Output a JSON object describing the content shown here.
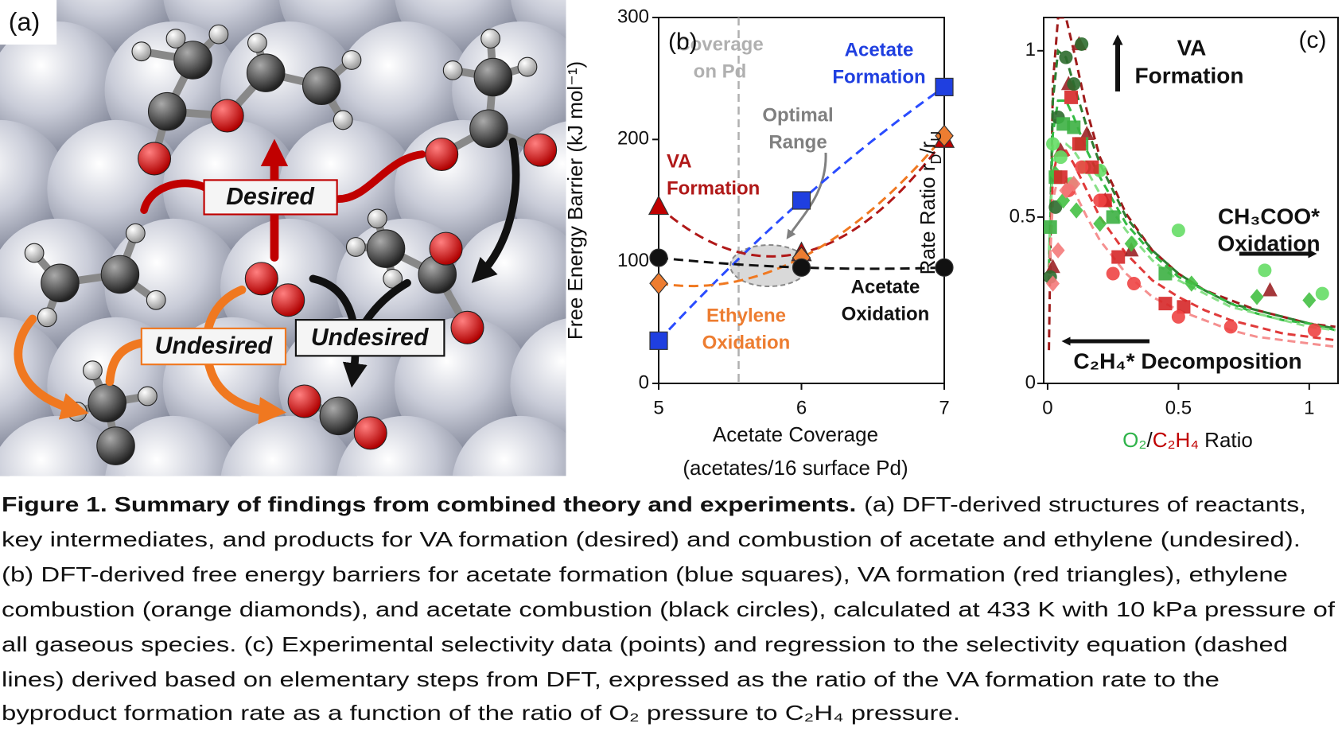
{
  "panel_a": {
    "label": "(a)",
    "labels": [
      "Desired",
      "Undesired",
      "Undesired"
    ]
  },
  "chart_data": [
    {
      "type": "scatter",
      "label": "(b)",
      "ylabel": "Free Energy Barrier (kJ mol⁻¹)",
      "xlabel": [
        "Acetate Coverage",
        "(acetates/16 surface Pd)"
      ],
      "x": [
        5,
        6,
        7
      ],
      "xlim": [
        5,
        7
      ],
      "xticks": [
        5,
        6,
        7
      ],
      "ylim": [
        0,
        300
      ],
      "yticks": [
        0,
        100,
        200,
        300
      ],
      "coverage_line": 5.56,
      "series": [
        {
          "marker": "square",
          "color": "#1f3fe0",
          "line_color": "#2a4cff",
          "values": [
            35,
            150,
            243
          ]
        },
        {
          "marker": "triangle",
          "color": "#c00000",
          "line_color": "#b01818",
          "values": [
            145,
            107,
            200
          ]
        },
        {
          "marker": "diamond",
          "color": "#ed7d31",
          "line_color": "#f07820",
          "values": [
            82,
            103,
            203
          ]
        },
        {
          "marker": "circle",
          "color": "#111111",
          "line_color": "#111111",
          "values": [
            103,
            95,
            95
          ]
        }
      ],
      "annotations": [
        {
          "text": [
            "Coverage",
            "on Pd"
          ],
          "color": "#b0b0b0"
        },
        {
          "text": [
            "Acetate",
            "Formation"
          ],
          "color": "#1f3fe0"
        },
        {
          "text": [
            "Optimal",
            "Range"
          ],
          "color": "#808080"
        },
        {
          "text": [
            "VA",
            "Formation"
          ],
          "color": "#b01818"
        },
        {
          "text": [
            "Ethylene",
            "Oxidation"
          ],
          "color": "#ed7d31"
        },
        {
          "text": [
            "Acetate",
            "Oxidation"
          ],
          "color": "#111111"
        }
      ]
    },
    {
      "type": "scatter",
      "label": "(c)",
      "ylabel": [
        "Rate Ratio r",
        "D",
        "/r",
        "U"
      ],
      "xlabel": [
        "O₂",
        "/",
        "C₂H₄",
        " Ratio"
      ],
      "xlabel_colors": [
        "#2fb34a",
        "#111111",
        "#c00000",
        "#111111"
      ],
      "xlim": [
        -0.015,
        1.11
      ],
      "xticks": [
        0,
        0.5,
        1
      ],
      "ylim": [
        0,
        1.1
      ],
      "yticks": [
        0,
        0.5,
        1
      ],
      "series": [
        {
          "marker": "triangle",
          "color": "#9b2226",
          "x": [
            0.02,
            0.05,
            0.08,
            0.12,
            0.15,
            0.22,
            0.32,
            0.85
          ],
          "values": [
            0.35,
            0.7,
            0.9,
            1.02,
            0.75,
            0.55,
            0.4,
            0.28
          ]
        },
        {
          "marker": "circle",
          "color": "#2e6b2e",
          "x": [
            0.01,
            0.03,
            0.04,
            0.07,
            0.1,
            0.13
          ],
          "values": [
            0.32,
            0.53,
            0.8,
            0.98,
            0.9,
            1.02
          ]
        },
        {
          "marker": "square",
          "color": "#3cb043",
          "x": [
            0.01,
            0.03,
            0.06,
            0.1,
            0.13,
            0.25,
            0.45
          ],
          "values": [
            0.47,
            0.62,
            0.78,
            0.77,
            0.72,
            0.5,
            0.33
          ]
        },
        {
          "marker": "circle",
          "color": "#66dd66",
          "x": [
            0.02,
            0.05,
            0.09,
            0.14,
            0.2,
            0.5,
            0.83,
            1.05
          ],
          "values": [
            0.72,
            0.68,
            0.6,
            0.65,
            0.64,
            0.46,
            0.34,
            0.27
          ]
        },
        {
          "marker": "diamond",
          "color": "#44c044",
          "x": [
            0.03,
            0.06,
            0.11,
            0.2,
            0.32,
            0.55,
            0.8,
            1.0
          ],
          "values": [
            0.63,
            0.55,
            0.52,
            0.48,
            0.42,
            0.3,
            0.26,
            0.25
          ]
        },
        {
          "marker": "square",
          "color": "#d62728",
          "x": [
            0.05,
            0.09,
            0.12,
            0.17,
            0.22,
            0.27,
            0.45,
            0.52
          ],
          "values": [
            0.62,
            0.86,
            0.72,
            0.65,
            0.55,
            0.38,
            0.24,
            0.23
          ]
        },
        {
          "marker": "circle",
          "color": "#ee4444",
          "x": [
            0.08,
            0.13,
            0.2,
            0.25,
            0.33,
            0.5,
            0.7,
            1.02
          ],
          "values": [
            0.58,
            0.65,
            0.55,
            0.33,
            0.3,
            0.2,
            0.17,
            0.16
          ]
        },
        {
          "marker": "diamond",
          "color": "#f47a7a",
          "x": [
            0.02,
            0.04,
            0.07,
            0.1
          ],
          "values": [
            0.3,
            0.4,
            0.58,
            0.6
          ]
        }
      ],
      "fits": {
        "x": [
          0.005,
          0.02,
          0.04,
          0.07,
          0.1,
          0.15,
          0.2,
          0.3,
          0.4,
          0.5,
          0.6,
          0.7,
          0.8,
          0.9,
          1.0,
          1.1
        ],
        "series": [
          {
            "color": "#a01c1c",
            "values": [
              0.1,
              0.9,
              1.1,
              1.1,
              1.0,
              0.82,
              0.68,
              0.51,
              0.4,
              0.33,
              0.28,
              0.25,
              0.22,
              0.2,
              0.18,
              0.17
            ]
          },
          {
            "color": "#2e7d32",
            "values": [
              0.3,
              0.85,
              1.0,
              0.98,
              0.9,
              0.77,
              0.66,
              0.5,
              0.4,
              0.33,
              0.28,
              0.24,
              0.22,
              0.2,
              0.18,
              0.165
            ]
          },
          {
            "color": "#33bb44",
            "values": [
              0.35,
              0.75,
              0.85,
              0.85,
              0.8,
              0.7,
              0.62,
              0.48,
              0.39,
              0.32,
              0.28,
              0.24,
              0.21,
              0.19,
              0.18,
              0.16
            ]
          },
          {
            "color": "#88e088",
            "values": [
              0.4,
              0.65,
              0.72,
              0.72,
              0.7,
              0.64,
              0.57,
              0.46,
              0.37,
              0.31,
              0.27,
              0.23,
              0.21,
              0.19,
              0.17,
              0.16
            ]
          },
          {
            "color": "#e03a3a",
            "values": [
              0.3,
              0.62,
              0.7,
              0.7,
              0.66,
              0.58,
              0.5,
              0.39,
              0.31,
              0.26,
              0.22,
              0.19,
              0.17,
              0.15,
              0.14,
              0.13
            ]
          },
          {
            "color": "#f59090",
            "values": [
              0.3,
              0.55,
              0.62,
              0.62,
              0.58,
              0.5,
              0.43,
              0.33,
              0.26,
              0.22,
              0.19,
              0.16,
              0.14,
              0.13,
              0.12,
              0.11
            ]
          }
        ]
      },
      "annotations": [
        {
          "text": [
            "VA",
            "Formation"
          ]
        },
        {
          "text": [
            "CH₃COO*",
            "Oxidation"
          ]
        },
        {
          "text": [
            "C₂H₄* Decomposition"
          ]
        }
      ]
    }
  ],
  "caption": {
    "bold": "Figure 1. Summary of findings from combined theory and experiments.",
    "lines": [
      "(a) DFT-derived structures of reactants,",
      "key intermediates, and products for VA formation (desired) and combustion of acetate and ethylene (undesired).",
      "(b) DFT-derived free energy barriers for acetate formation (blue squares), VA formation (red triangles), ethylene",
      "combustion (orange diamonds), and acetate combustion (black circles), calculated at 433 K with 10 kPa pressure of",
      "all gaseous species. (c) Experimental selectivity data (points) and regression to the selectivity equation (dashed",
      "lines) derived based on elementary steps from DFT, expressed as the ratio of the VA formation rate to the",
      "byproduct formation rate as a function of the ratio of O₂ pressure to C₂H₄ pressure."
    ]
  }
}
